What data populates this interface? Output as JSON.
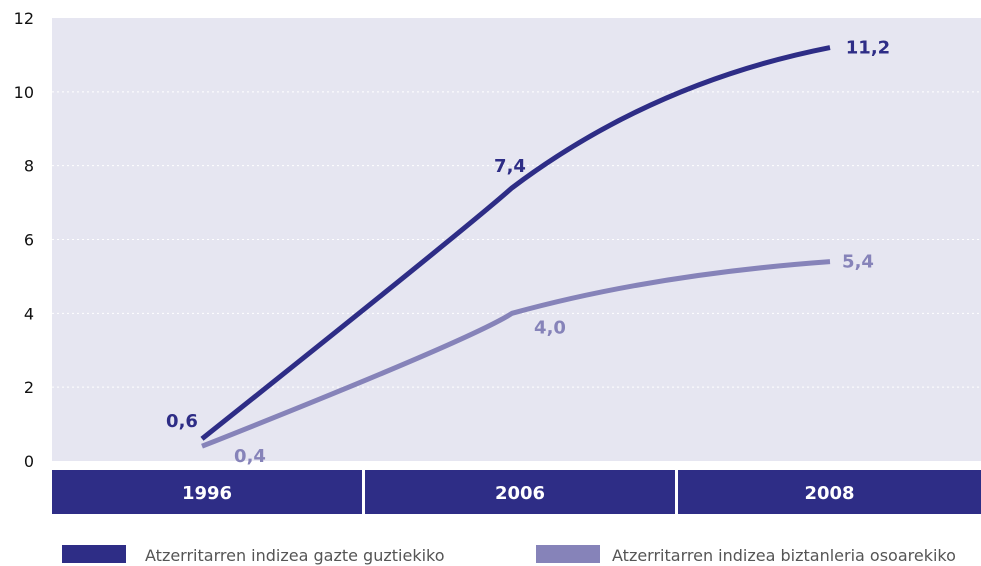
{
  "chart_data": {
    "type": "line",
    "categories": [
      "1996",
      "2006",
      "2008"
    ],
    "ylim": [
      0,
      12
    ],
    "yticks": [
      "0",
      "2",
      "4",
      "6",
      "8",
      "10",
      "12"
    ],
    "grid": true,
    "legend_position": "bottom",
    "series": [
      {
        "name": "Atzerritarren indizea gazte guztiekiko",
        "color": "#2e2d86",
        "values": [
          0.6,
          7.4,
          11.2
        ],
        "labels": [
          "0,6",
          "7,4",
          "11,2"
        ]
      },
      {
        "name": "Atzerritarren indizea biztanleria osoarekiko",
        "color": "#8683b9",
        "values": [
          0.4,
          4.0,
          5.4
        ],
        "labels": [
          "0,4",
          "4,0",
          "5,4"
        ]
      }
    ]
  },
  "colors": {
    "plot_background": "#e6e6f1",
    "category_band": "#2e2d86"
  }
}
